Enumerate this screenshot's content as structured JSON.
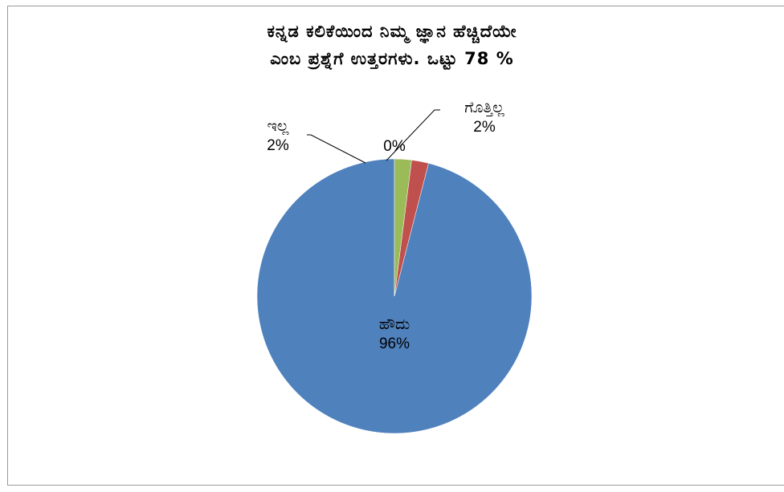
{
  "chart_data": {
    "type": "pie",
    "title_lines": [
      "ಕನ್ನಡ ಕಲಿಕೆಯಿಂದ ನಿಮ್ಮ ಜ್ಞಾನ ಹೆಚ್ಚಿದೆಯೇ",
      "ಎಂಬ ಪ್ರಶ್ನೆಗೆ ಉತ್ತರಗಳು. ಒಟ್ಟು 78 %"
    ],
    "slices": [
      {
        "name": "ಹೌದು",
        "value": 96,
        "label": "96%",
        "color": "#4f81bd"
      },
      {
        "name": "ಇಲ್ಲ",
        "value": 2,
        "label": "2%",
        "color": "#c0504d"
      },
      {
        "name": "",
        "value": 0,
        "label": "0%",
        "color": "#8064a2"
      },
      {
        "name": "ಗೊತ್ತಿಲ್ಲ",
        "value": 2,
        "label": "2%",
        "color": "#9bbb59"
      }
    ],
    "start_angle_deg": 0,
    "direction": "counterclockwise",
    "legend": "none"
  }
}
